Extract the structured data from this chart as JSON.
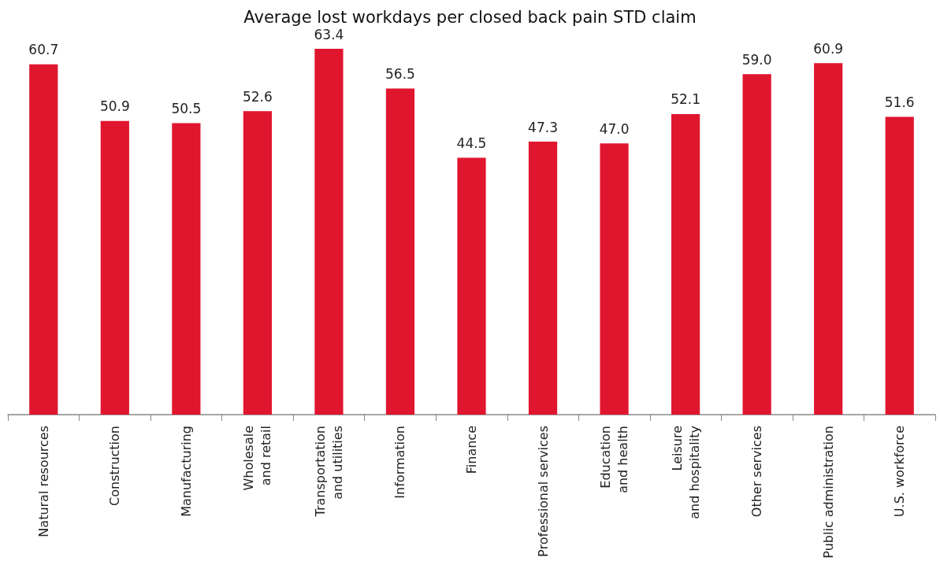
{
  "chart_data": {
    "type": "bar",
    "title": "Average lost workdays per closed back pain STD claim",
    "categories": [
      "Natural resources",
      "Construction",
      "Manufacturing",
      "Wholesale\nand retail",
      "Transportation\nand utilities",
      "Information",
      "Finance",
      "Professional services",
      "Education\nand health",
      "Leisure\nand hospitality",
      "Other services",
      "Public administration",
      "U.S. workforce"
    ],
    "values": [
      60.7,
      50.9,
      50.5,
      52.6,
      63.4,
      56.5,
      44.5,
      47.3,
      47.0,
      52.1,
      59.0,
      60.9,
      51.6
    ],
    "value_labels": [
      "60.7",
      "50.9",
      "50.5",
      "52.6",
      "63.4",
      "56.5",
      "44.5",
      "47.3",
      "47.0",
      "52.1",
      "59.0",
      "60.9",
      "51.6"
    ],
    "color": "#e0162f",
    "tick_labels": "x"
  }
}
